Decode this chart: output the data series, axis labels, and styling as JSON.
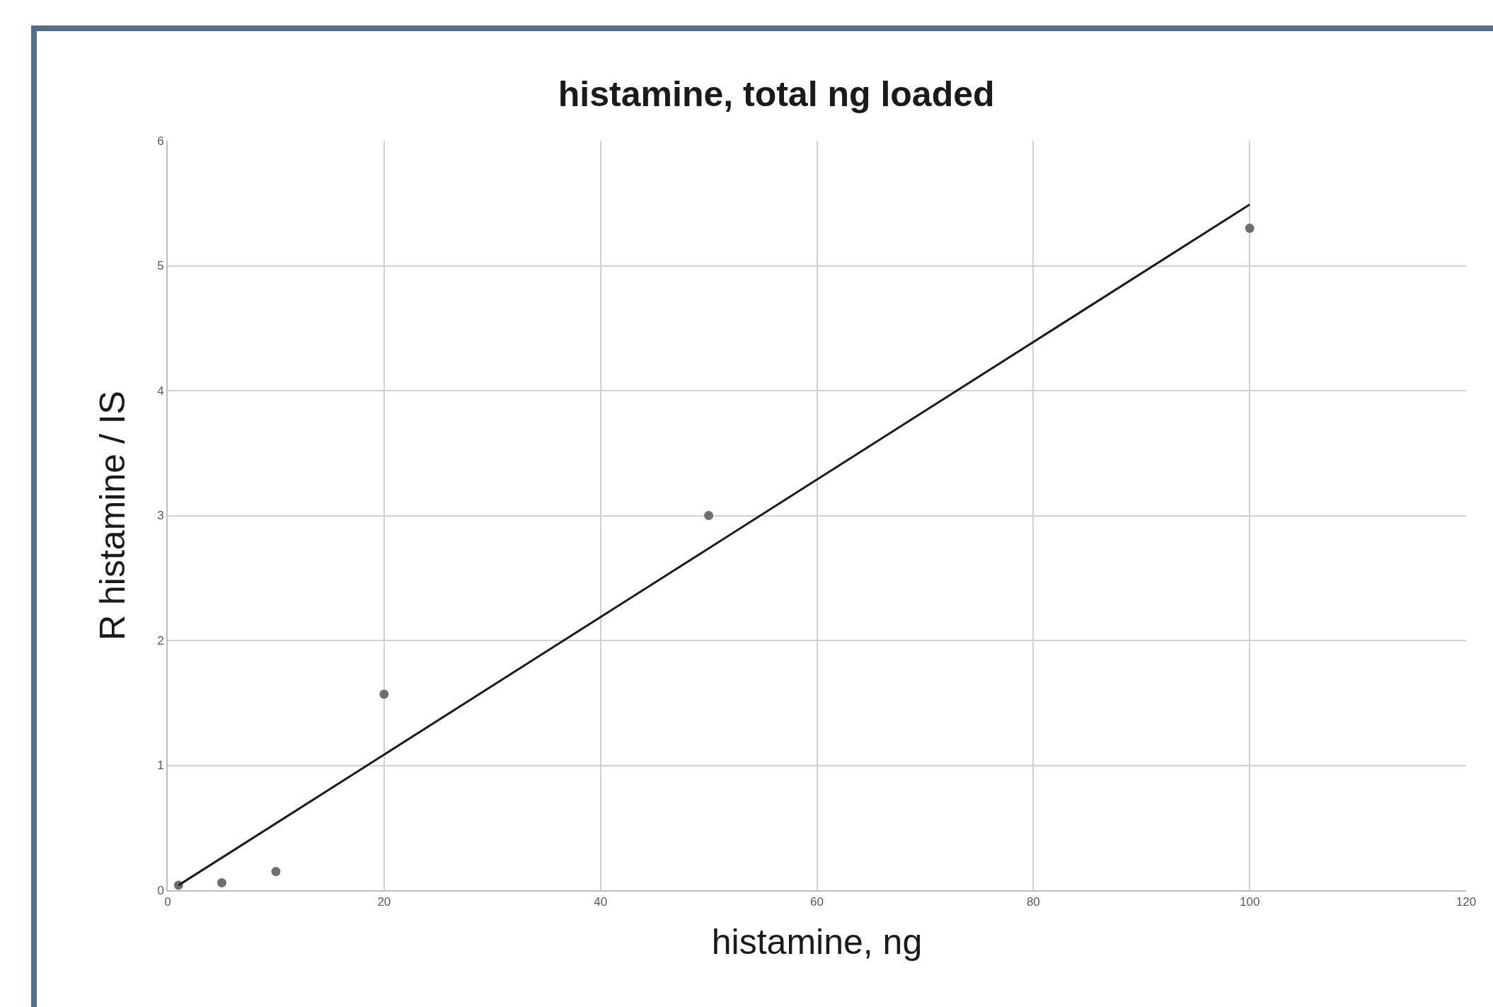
{
  "chart_data": {
    "type": "scatter",
    "title": "histamine, total ng loaded",
    "xlabel": "histamine, ng",
    "ylabel": "R histamine / IS",
    "series": [
      {
        "type": "scatter",
        "x": [
          1,
          5,
          10,
          20,
          50,
          100
        ],
        "values": [
          0.04,
          0.06,
          0.15,
          1.57,
          3.0,
          5.3
        ],
        "color": "#6e6e6e",
        "marker": "circle"
      },
      {
        "type": "line",
        "x": [
          1,
          100
        ],
        "values": [
          0.04,
          5.49
        ],
        "color": "#1a1a1a",
        "marker": "none",
        "line_style": "solid"
      }
    ],
    "xlim": [
      0,
      120
    ],
    "xticks": [
      0,
      20,
      40,
      60,
      80,
      100,
      120
    ],
    "ylim": [
      0,
      6
    ],
    "yticks": [
      0,
      1,
      2,
      3,
      4,
      5,
      6
    ],
    "grid": true
  }
}
